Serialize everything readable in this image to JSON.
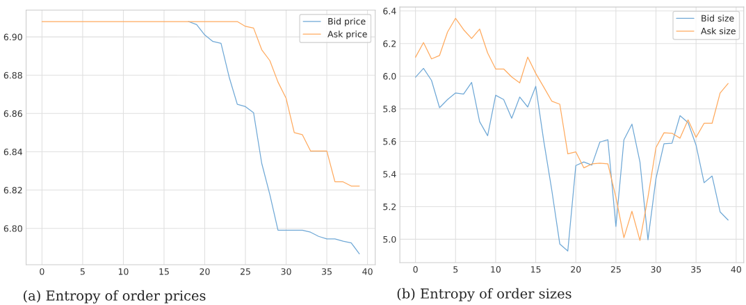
{
  "chart_data": [
    {
      "type": "line",
      "x": [
        0,
        1,
        2,
        3,
        4,
        5,
        6,
        7,
        8,
        9,
        10,
        11,
        12,
        13,
        14,
        15,
        16,
        17,
        18,
        19,
        20,
        21,
        22,
        23,
        24,
        25,
        26,
        27,
        28,
        29,
        30,
        31,
        32,
        33,
        34,
        35,
        36,
        37,
        38,
        39
      ],
      "series": [
        {
          "name": "Bid price",
          "color": "#6fa8d6",
          "values": [
            null,
            null,
            null,
            null,
            null,
            null,
            null,
            null,
            null,
            null,
            null,
            null,
            null,
            null,
            null,
            null,
            null,
            null,
            6.908,
            6.9064,
            6.901,
            6.8976,
            6.8966,
            6.879,
            6.8648,
            6.8636,
            6.8604,
            6.834,
            6.8176,
            6.799,
            6.799,
            6.799,
            6.799,
            6.798,
            6.7958,
            6.7945,
            6.7945,
            6.7933,
            6.7924,
            6.7867
          ]
        },
        {
          "name": "Ask price",
          "color": "#ffaa5e",
          "values": [
            6.908,
            6.908,
            6.908,
            6.908,
            6.908,
            6.908,
            6.908,
            6.908,
            6.908,
            6.908,
            6.908,
            6.908,
            6.908,
            6.908,
            6.908,
            6.908,
            6.908,
            6.908,
            6.908,
            6.908,
            6.908,
            6.908,
            6.908,
            6.908,
            6.908,
            6.9055,
            6.9046,
            6.8933,
            6.8876,
            6.8764,
            6.8679,
            6.85,
            6.8489,
            6.8404,
            6.8404,
            6.8404,
            6.8243,
            6.8243,
            6.8221,
            6.8221
          ]
        }
      ],
      "xlim": [
        -1.95,
        40.95
      ],
      "xticks": [
        0,
        5,
        10,
        15,
        20,
        25,
        30,
        35,
        40
      ],
      "ylim": [
        6.781,
        6.914
      ],
      "yticks": [
        {
          "value": 6.8,
          "label": "6.80"
        },
        {
          "value": 6.82,
          "label": "6.82"
        },
        {
          "value": 6.84,
          "label": "6.84"
        },
        {
          "value": 6.86,
          "label": "6.86"
        },
        {
          "value": 6.88,
          "label": "6.88"
        },
        {
          "value": 6.9,
          "label": "6.90"
        }
      ],
      "grid": true,
      "legend": "top right",
      "marker": "none",
      "line_style": "solid",
      "annotations": [
        "(a) Entropy of order prices"
      ]
    },
    {
      "type": "line",
      "x": [
        0,
        1,
        2,
        3,
        4,
        5,
        6,
        7,
        8,
        9,
        10,
        11,
        12,
        13,
        14,
        15,
        16,
        17,
        18,
        19,
        20,
        21,
        22,
        23,
        24,
        25,
        26,
        27,
        28,
        29,
        30,
        31,
        32,
        33,
        34,
        35,
        36,
        37,
        38,
        39
      ],
      "series": [
        {
          "name": "Bid size",
          "color": "#6fa8d6",
          "values": [
            5.994,
            6.048,
            5.974,
            5.807,
            5.857,
            5.897,
            5.89,
            5.962,
            5.721,
            5.635,
            5.883,
            5.857,
            5.742,
            5.872,
            5.811,
            5.938,
            5.603,
            5.302,
            4.971,
            4.928,
            5.452,
            5.474,
            5.455,
            5.596,
            5.61,
            5.079,
            5.61,
            5.706,
            5.474,
            4.997,
            5.373,
            5.586,
            5.589,
            5.758,
            5.715,
            5.577,
            5.347,
            5.388,
            5.168,
            5.118
          ]
        },
        {
          "name": "Ask size",
          "color": "#ffaa5e",
          "values": [
            6.116,
            6.206,
            6.106,
            6.127,
            6.271,
            6.355,
            6.285,
            6.231,
            6.289,
            6.142,
            6.044,
            6.044,
            5.995,
            5.959,
            6.117,
            6.017,
            5.933,
            5.847,
            5.828,
            5.524,
            5.536,
            5.438,
            5.462,
            5.467,
            5.462,
            5.258,
            5.01,
            5.172,
            4.993,
            5.258,
            5.563,
            5.653,
            5.65,
            5.62,
            5.732,
            5.625,
            5.711,
            5.711,
            5.897,
            5.955
          ]
        }
      ],
      "xlim": [
        -1.95,
        40.95
      ],
      "xticks": [
        0,
        5,
        10,
        15,
        20,
        25,
        30,
        35,
        40
      ],
      "ylim": [
        4.857,
        6.424
      ],
      "yticks": [
        {
          "value": 5.0,
          "label": "5.0"
        },
        {
          "value": 5.2,
          "label": "5.2"
        },
        {
          "value": 5.4,
          "label": "5.4"
        },
        {
          "value": 5.6,
          "label": "5.6"
        },
        {
          "value": 5.8,
          "label": "5.8"
        },
        {
          "value": 6.0,
          "label": "6.0"
        },
        {
          "value": 6.2,
          "label": "6.2"
        },
        {
          "value": 6.4,
          "label": "6.4"
        }
      ],
      "grid": true,
      "legend": "top right",
      "marker": "none",
      "line_style": "solid",
      "annotations": [
        "(b) Entropy of order sizes"
      ]
    }
  ]
}
